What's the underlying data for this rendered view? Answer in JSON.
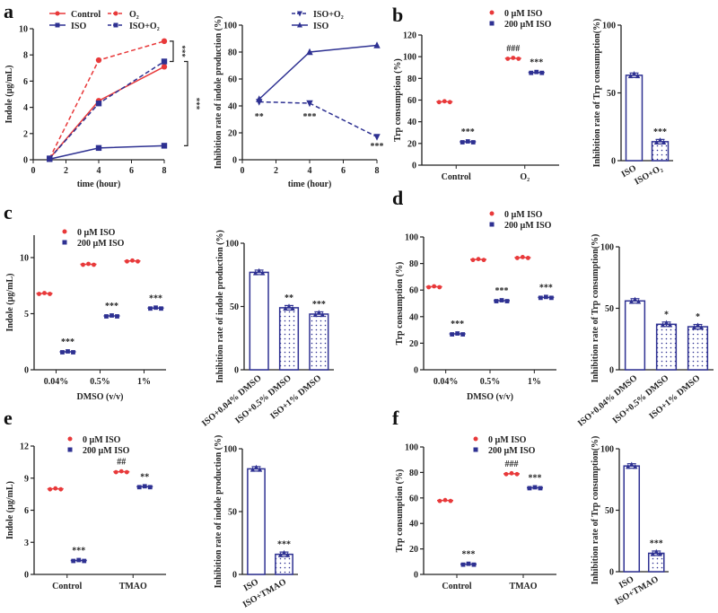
{
  "panels": [
    "a",
    "b",
    "c",
    "d",
    "e",
    "f"
  ],
  "colors": {
    "red": "#e8393a",
    "blue": "#2e3192",
    "axis": "#222222"
  },
  "chart_data": [
    {
      "panel": "a",
      "type": "line",
      "xlabel": "time (hour)",
      "ylabel": "Indole (µg/mL)",
      "xlim": [
        0,
        8
      ],
      "xticks": [
        0,
        2,
        4,
        6,
        8
      ],
      "ylim": [
        0,
        10
      ],
      "yticks": [
        0,
        2,
        4,
        6,
        8,
        10
      ],
      "x": [
        1,
        4,
        8
      ],
      "series": [
        {
          "name": "Control",
          "color": "#e8393a",
          "dash": false,
          "marker": "circle",
          "values": [
            0.1,
            4.5,
            7.1
          ]
        },
        {
          "name": "ISO",
          "color": "#2e3192",
          "dash": false,
          "marker": "square",
          "values": [
            0.05,
            0.9,
            1.07
          ]
        },
        {
          "name": "O₂",
          "color": "#e8393a",
          "dash": true,
          "marker": "circle",
          "values": [
            0.1,
            7.6,
            9.05
          ]
        },
        {
          "name": "ISO+O₂",
          "color": "#2e3192",
          "dash": true,
          "marker": "square",
          "values": [
            0.1,
            4.3,
            7.5
          ]
        }
      ],
      "annotations": [
        {
          "text": "***",
          "bracket": [
            7.5,
            9.05
          ]
        },
        {
          "text": "***",
          "bracket": [
            1.07,
            7.5
          ]
        }
      ]
    },
    {
      "panel": "a",
      "type": "line",
      "xlabel": "time (hour)",
      "ylabel": "Inhibition rate of indole production (%)",
      "xlim": [
        0,
        8
      ],
      "xticks": [
        0,
        2,
        4,
        6,
        8
      ],
      "ylim": [
        0,
        100
      ],
      "yticks": [
        0,
        20,
        40,
        60,
        80,
        100
      ],
      "x": [
        1,
        4,
        8
      ],
      "series": [
        {
          "name": "ISO+O₂",
          "color": "#2e3192",
          "dash": true,
          "marker": "triangle-down",
          "values": [
            43,
            42,
            17
          ]
        },
        {
          "name": "ISO",
          "color": "#2e3192",
          "dash": false,
          "marker": "triangle",
          "values": [
            45,
            80,
            85
          ]
        }
      ],
      "annotations": [
        {
          "text": "**",
          "x": 1,
          "y": 30
        },
        {
          "text": "***",
          "x": 4,
          "y": 30
        },
        {
          "text": "***",
          "x": 8,
          "y": 8
        }
      ]
    },
    {
      "panel": "b",
      "type": "scatter",
      "xlabel": "",
      "ylabel": "Trp consumption (%)",
      "ylim": [
        0,
        120
      ],
      "yticks": [
        0,
        20,
        40,
        60,
        80,
        100,
        120
      ],
      "categories": [
        "Control",
        "O₂"
      ],
      "series": [
        {
          "name": "0 µM ISO",
          "color": "#e8393a",
          "marker": "circle",
          "values": [
            58.5,
            98.5
          ]
        },
        {
          "name": "200 µM ISO",
          "color": "#2e3192",
          "marker": "square",
          "values": [
            21.5,
            85.5
          ]
        }
      ],
      "annotations": [
        {
          "text": "***",
          "category": 0,
          "series": 1
        },
        {
          "text": "###",
          "category": 1,
          "series": 0
        },
        {
          "text": "***",
          "category": 1,
          "series": 1
        }
      ]
    },
    {
      "panel": "b",
      "type": "bar",
      "ylabel": "Inhibition rate of Trp consumption(%)",
      "ylim": [
        0,
        100
      ],
      "yticks": [
        0,
        50,
        100
      ],
      "categories": [
        "ISO",
        "ISO+O₂"
      ],
      "values": [
        63,
        14
      ],
      "marker": "triangle",
      "annotations": [
        {
          "text": "***",
          "category": 1
        }
      ]
    },
    {
      "panel": "c",
      "type": "scatter",
      "xlabel": "DMSO (v/v)",
      "ylabel": "Indole (µg/mL)",
      "ylim": [
        0,
        12
      ],
      "yticks": [
        0,
        5,
        10
      ],
      "categories": [
        "0.04%",
        "0.5%",
        "1%"
      ],
      "series": [
        {
          "name": "0 µM ISO",
          "color": "#e8393a",
          "marker": "circle",
          "values": [
            6.8,
            9.4,
            9.7
          ]
        },
        {
          "name": "200 µM ISO",
          "color": "#2e3192",
          "marker": "square",
          "values": [
            1.6,
            4.8,
            5.5
          ]
        }
      ],
      "annotations": [
        {
          "text": "***",
          "category": 0,
          "series": 1
        },
        {
          "text": "***",
          "category": 1,
          "series": 1
        },
        {
          "text": "***",
          "category": 2,
          "series": 1
        }
      ]
    },
    {
      "panel": "c",
      "type": "bar",
      "ylabel": "Inhibition rate of indole production (%)",
      "ylim": [
        0,
        100
      ],
      "yticks": [
        0,
        50,
        100
      ],
      "categories": [
        "ISO+0.04% DMSO",
        "ISO+0.5% DMSO",
        "ISO+1% DMSO"
      ],
      "values": [
        77,
        49,
        44
      ],
      "marker": "triangle",
      "annotations": [
        {
          "text": "**",
          "category": 1
        },
        {
          "text": "***",
          "category": 2
        }
      ]
    },
    {
      "panel": "d",
      "type": "scatter",
      "xlabel": "DMSO (v/v)",
      "ylabel": "Trp consumption (%)",
      "ylim": [
        0,
        100
      ],
      "yticks": [
        0,
        20,
        40,
        60,
        80,
        100
      ],
      "categories": [
        "0.04%",
        "0.5%",
        "1%"
      ],
      "series": [
        {
          "name": "0 µM ISO",
          "color": "#e8393a",
          "marker": "circle",
          "values": [
            62.5,
            83,
            84.5
          ]
        },
        {
          "name": "200 µM ISO",
          "color": "#2e3192",
          "marker": "square",
          "values": [
            27,
            52,
            54.5
          ]
        }
      ],
      "annotations": [
        {
          "text": "***",
          "category": 0,
          "series": 1
        },
        {
          "text": "***",
          "category": 1,
          "series": 1
        },
        {
          "text": "***",
          "category": 2,
          "series": 1
        }
      ]
    },
    {
      "panel": "d",
      "type": "bar",
      "ylabel": "Inhibition rate of Trp consumption(%)",
      "ylim": [
        0,
        100
      ],
      "yticks": [
        0,
        50,
        100
      ],
      "categories": [
        "ISO+0.04% DMSO",
        "ISO+0.5% DMSO",
        "ISO+1% DMSO"
      ],
      "values": [
        56,
        37,
        35
      ],
      "marker": "triangle",
      "annotations": [
        {
          "text": "*",
          "category": 1
        },
        {
          "text": "*",
          "category": 2
        }
      ]
    },
    {
      "panel": "e",
      "type": "scatter",
      "xlabel": "",
      "ylabel": "Indole (µg/mL)",
      "ylim": [
        0,
        12
      ],
      "yticks": [
        0,
        3,
        6,
        9,
        12
      ],
      "categories": [
        "Control",
        "TMAO"
      ],
      "series": [
        {
          "name": "0 µM ISO",
          "color": "#e8393a",
          "marker": "circle",
          "values": [
            8.0,
            9.6
          ]
        },
        {
          "name": "200 µM ISO",
          "color": "#2e3192",
          "marker": "square",
          "values": [
            1.3,
            8.2
          ]
        }
      ],
      "annotations": [
        {
          "text": "***",
          "category": 0,
          "series": 1
        },
        {
          "text": "##",
          "category": 1,
          "series": 0
        },
        {
          "text": "**",
          "category": 1,
          "series": 1
        }
      ]
    },
    {
      "panel": "e",
      "type": "bar",
      "ylabel": "Inhibition rate of indole production (%)",
      "ylim": [
        0,
        100
      ],
      "yticks": [
        0,
        50,
        100
      ],
      "categories": [
        "ISO",
        "ISO+TMAO"
      ],
      "values": [
        84,
        16
      ],
      "marker": "triangle",
      "annotations": [
        {
          "text": "***",
          "category": 1
        }
      ]
    },
    {
      "panel": "f",
      "type": "scatter",
      "xlabel": "",
      "ylabel": "Trp consumption (%)",
      "ylim": [
        0,
        100
      ],
      "yticks": [
        0,
        20,
        40,
        60,
        80,
        100
      ],
      "categories": [
        "Control",
        "TMAO"
      ],
      "series": [
        {
          "name": "0 µM ISO",
          "color": "#e8393a",
          "marker": "circle",
          "values": [
            58,
            79
          ]
        },
        {
          "name": "200 µM ISO",
          "color": "#2e3192",
          "marker": "square",
          "values": [
            8,
            68
          ]
        }
      ],
      "annotations": [
        {
          "text": "***",
          "category": 0,
          "series": 1
        },
        {
          "text": "###",
          "category": 1,
          "series": 0
        },
        {
          "text": "***",
          "category": 1,
          "series": 1
        }
      ]
    },
    {
      "panel": "f",
      "type": "bar",
      "ylabel": "Inhibition rate of Trp consumption(%)",
      "ylim": [
        0,
        100
      ],
      "yticks": [
        0,
        50,
        100
      ],
      "categories": [
        "ISO",
        "ISO+TMAO"
      ],
      "values": [
        86,
        15
      ],
      "marker": "triangle",
      "annotations": [
        {
          "text": "***",
          "category": 1
        }
      ]
    }
  ]
}
